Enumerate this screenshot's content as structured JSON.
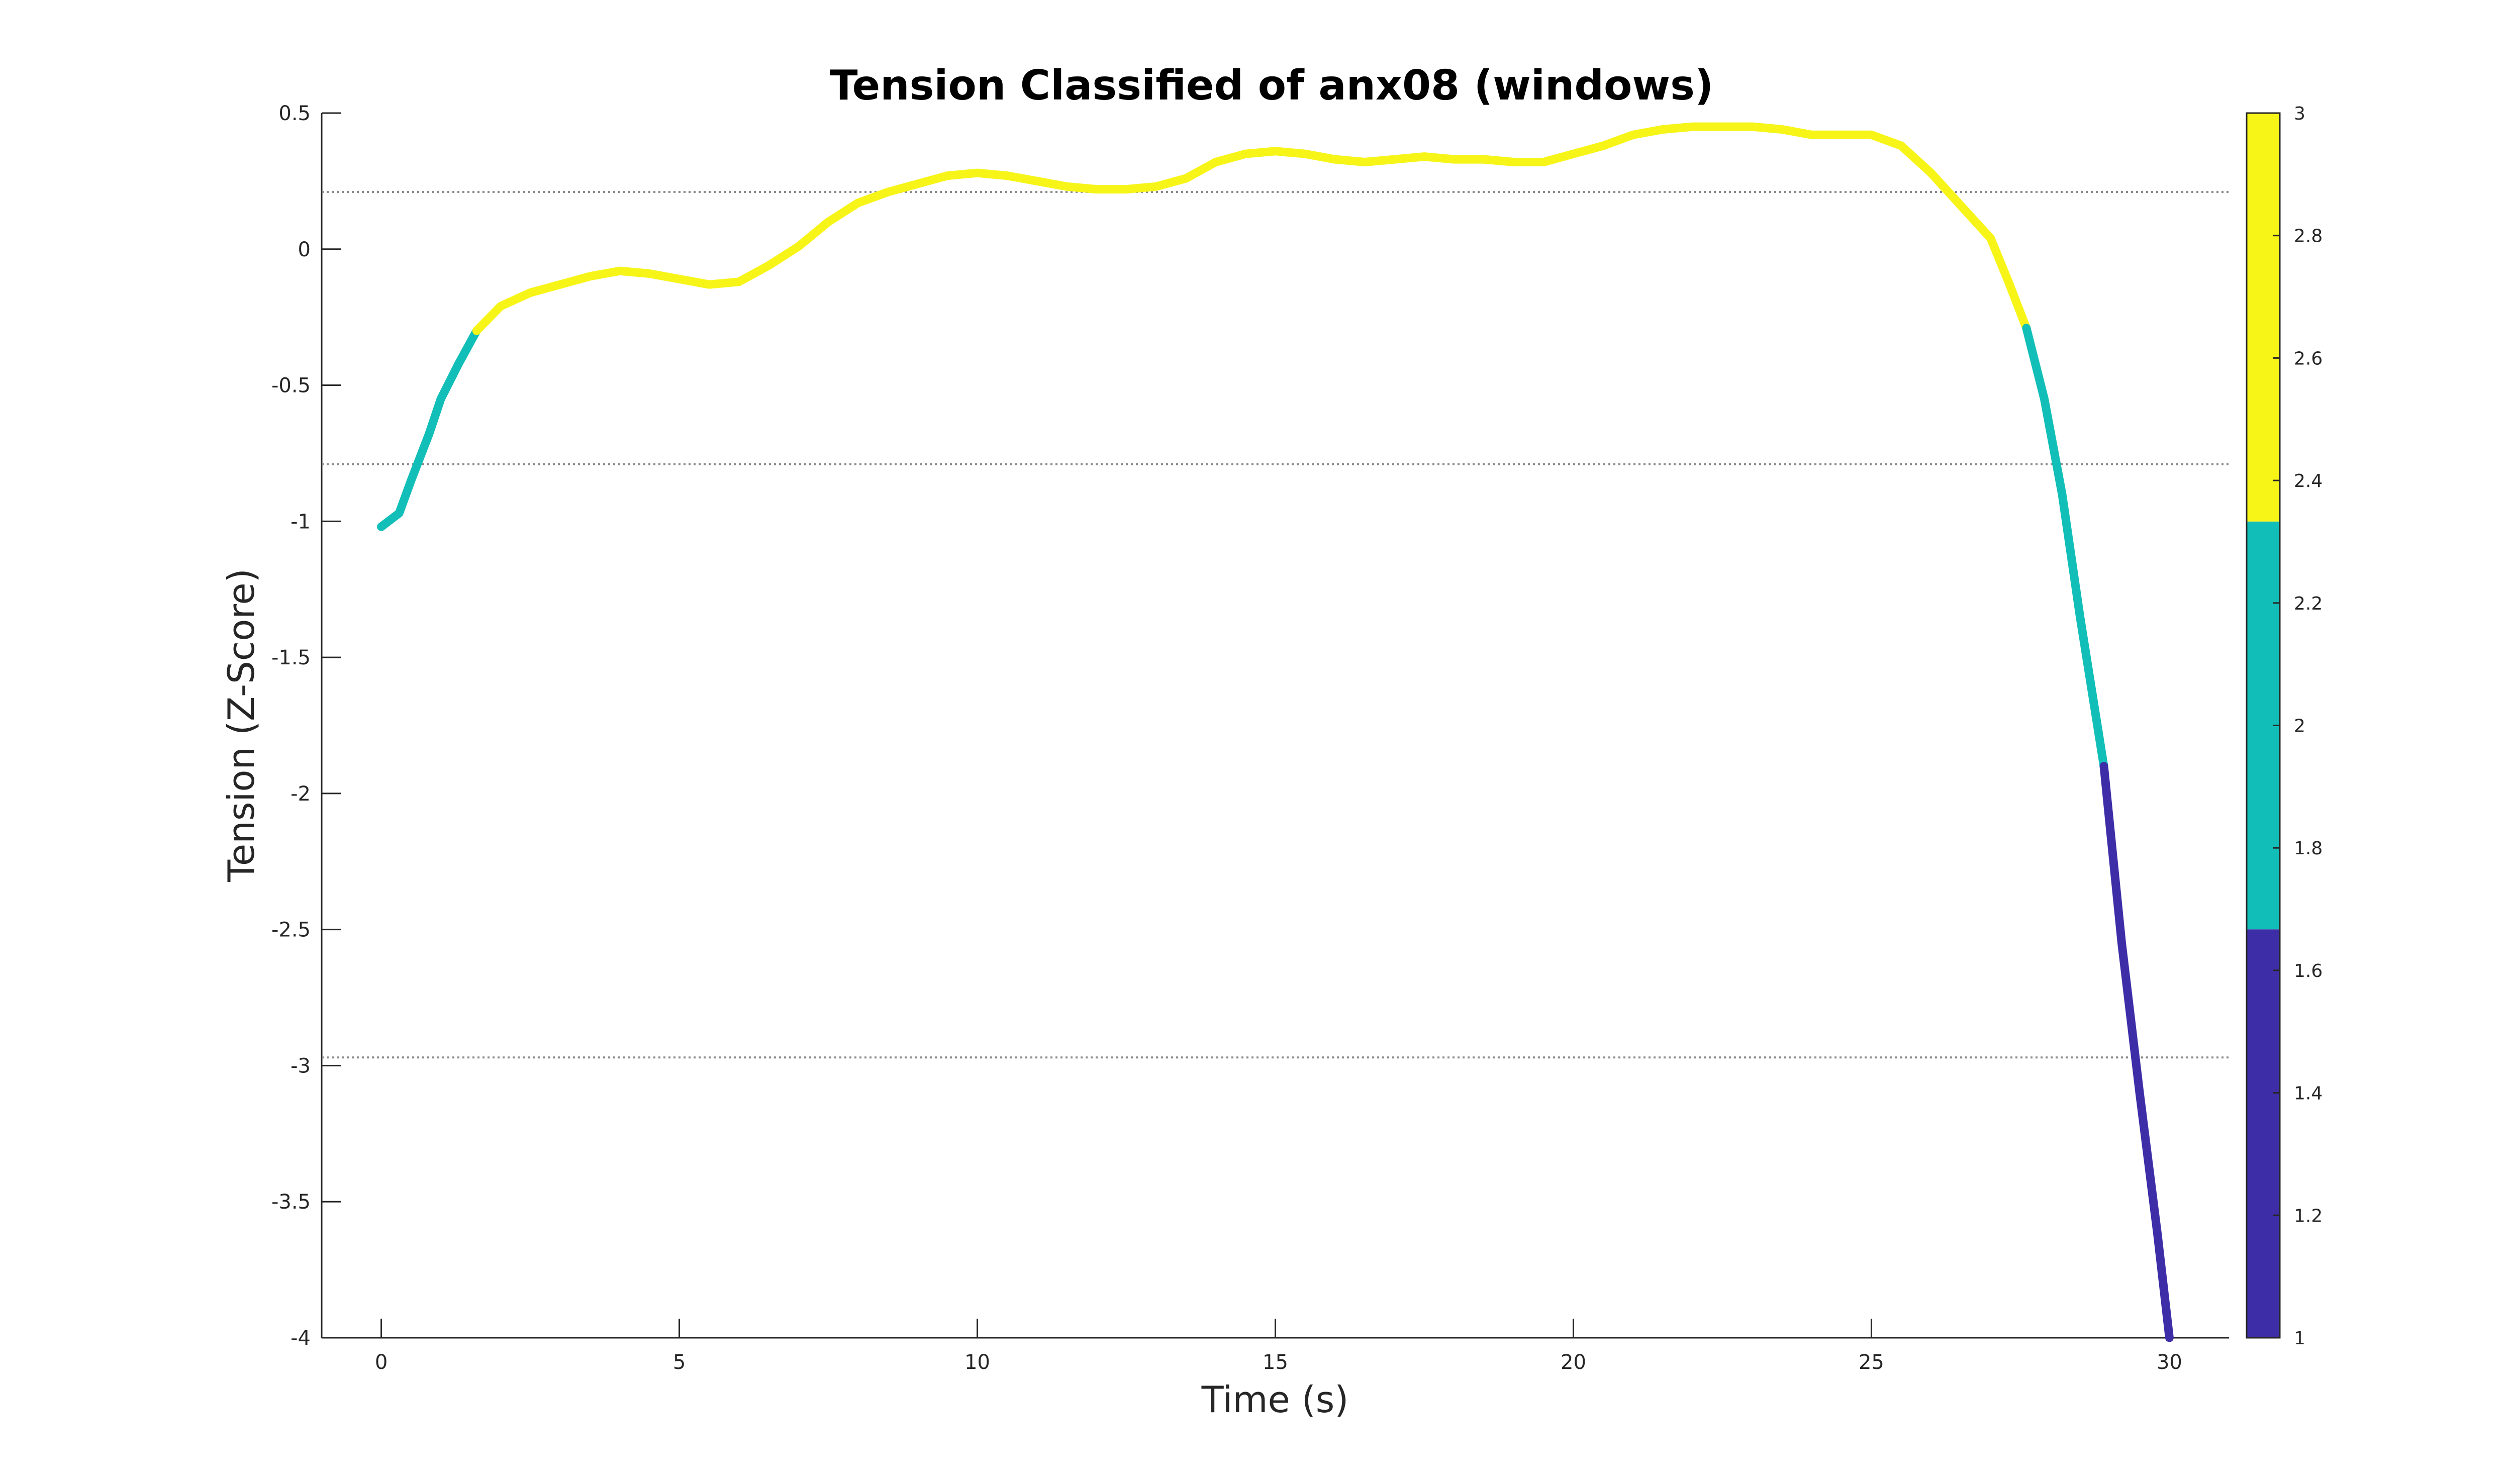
{
  "chart_data": {
    "type": "line",
    "title": "Tension Classified of anx08 (windows)",
    "xlabel": "Time (s)",
    "ylabel": "Tension (Z-Score)",
    "xlim": [
      -1,
      31
    ],
    "ylim": [
      -4,
      0.5
    ],
    "xticks": [
      0,
      5,
      10,
      15,
      20,
      25,
      30
    ],
    "yticks": [
      0.5,
      0,
      -0.5,
      -1,
      -1.5,
      -2,
      -2.5,
      -3,
      -3.5,
      -4
    ],
    "xtick_labels": [
      "0",
      "5",
      "10",
      "15",
      "20",
      "25",
      "30"
    ],
    "ytick_labels": [
      "0.5",
      "0",
      "-0.5",
      "-1",
      "-1.5",
      "-2",
      "-2.5",
      "-3",
      "-3.5",
      "-4"
    ],
    "threshold_lines": [
      0.21,
      -0.79,
      -2.97
    ],
    "grid": false,
    "colorbar": {
      "range": [
        1,
        3
      ],
      "ticks": [
        1,
        1.2,
        1.4,
        1.6,
        1.8,
        2,
        2.2,
        2.4,
        2.6,
        2.8,
        3
      ],
      "tick_labels": [
        "1",
        "1.2",
        "1.4",
        "1.6",
        "1.8",
        "2",
        "2.2",
        "2.4",
        "2.6",
        "2.8",
        "3"
      ],
      "bands": [
        {
          "from": 1,
          "to": 1.667,
          "color": "#3d2ea8"
        },
        {
          "from": 1.667,
          "to": 2.333,
          "color": "#12bfb8"
        },
        {
          "from": 2.333,
          "to": 3,
          "color": "#f7f518"
        }
      ]
    },
    "series": [
      {
        "class": 2,
        "color": "#12bfb8",
        "x": [
          0,
          0.3,
          0.5,
          0.8,
          1.0,
          1.3,
          1.6
        ],
        "y": [
          -1.02,
          -0.97,
          -0.85,
          -0.68,
          -0.55,
          -0.42,
          -0.3
        ]
      },
      {
        "class": 3,
        "color": "#f7f518",
        "x": [
          1.6,
          2.0,
          2.5,
          3.0,
          3.5,
          4.0,
          4.5,
          5.0,
          5.5,
          6.0,
          6.5,
          7.0,
          7.5,
          8.0,
          8.5,
          9.0,
          9.5,
          10.0,
          10.5,
          11.0,
          11.5,
          12.0,
          12.5,
          13.0,
          13.5,
          14.0,
          14.5,
          15.0,
          15.5,
          16.0,
          16.5,
          17.0,
          17.5,
          18.0,
          18.5,
          19.0,
          19.5,
          20.0,
          20.5,
          21.0,
          21.5,
          22.0,
          22.5,
          23.0,
          23.5,
          24.0,
          24.5,
          25.0,
          25.5,
          26.0,
          26.5,
          27.0,
          27.3,
          27.6
        ],
        "y": [
          -0.3,
          -0.21,
          -0.16,
          -0.13,
          -0.1,
          -0.08,
          -0.09,
          -0.11,
          -0.13,
          -0.12,
          -0.06,
          0.01,
          0.1,
          0.17,
          0.21,
          0.24,
          0.27,
          0.28,
          0.27,
          0.25,
          0.23,
          0.22,
          0.22,
          0.23,
          0.26,
          0.32,
          0.35,
          0.36,
          0.35,
          0.33,
          0.32,
          0.33,
          0.34,
          0.33,
          0.33,
          0.32,
          0.32,
          0.35,
          0.38,
          0.42,
          0.44,
          0.45,
          0.45,
          0.45,
          0.44,
          0.42,
          0.42,
          0.42,
          0.38,
          0.28,
          0.16,
          0.04,
          -0.12,
          -0.29
        ]
      },
      {
        "class": 2,
        "color": "#12bfb8",
        "x": [
          27.6,
          27.9,
          28.2,
          28.5,
          28.9
        ],
        "y": [
          -0.29,
          -0.55,
          -0.9,
          -1.35,
          -1.9
        ]
      },
      {
        "class": 1,
        "color": "#3d2ea8",
        "x": [
          28.9,
          29.2,
          29.5,
          29.8,
          30.0
        ],
        "y": [
          -1.9,
          -2.55,
          -3.1,
          -3.62,
          -4.0
        ]
      }
    ]
  }
}
